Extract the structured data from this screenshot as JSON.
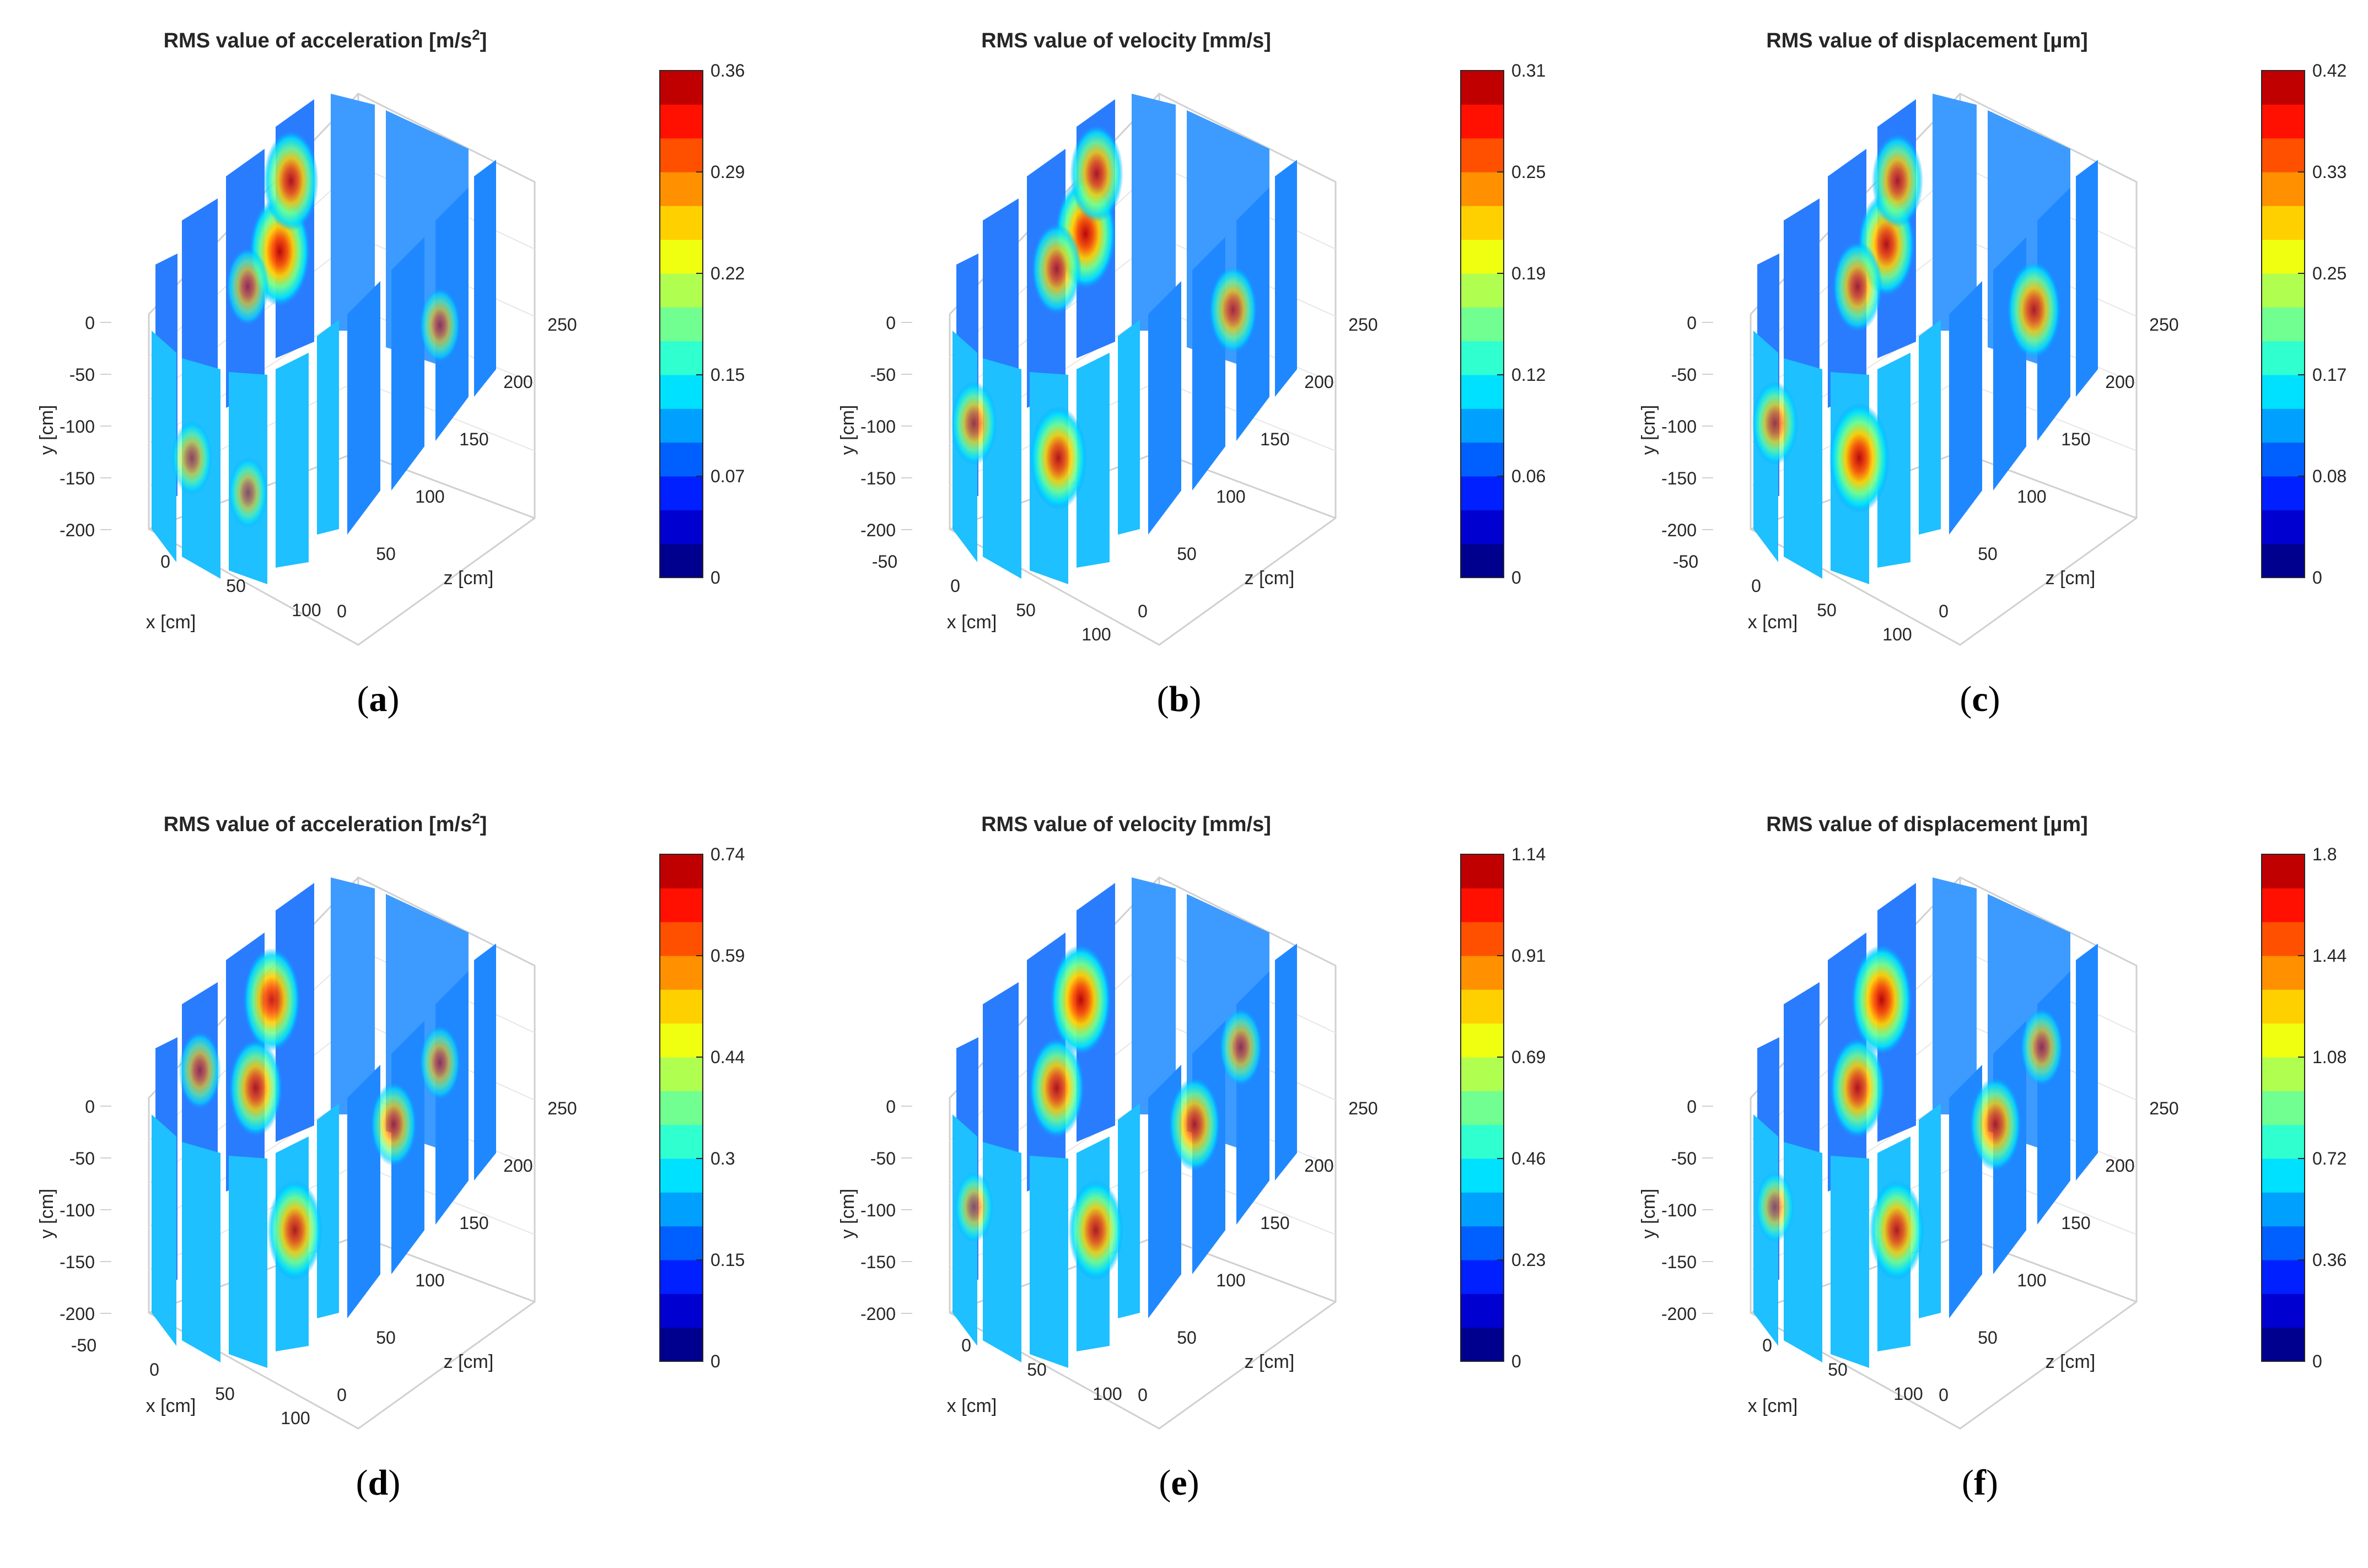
{
  "figure": {
    "colormap": [
      "#00008f",
      "#0000d0",
      "#0020ff",
      "#0060ff",
      "#00a0ff",
      "#00e0ff",
      "#30ffd0",
      "#70ff90",
      "#b0ff50",
      "#f0ff10",
      "#ffd000",
      "#ff9000",
      "#ff5000",
      "#ff1000",
      "#c00000"
    ],
    "mesh_color": "#d0d0d0",
    "panel_bg": "#ffffff"
  },
  "chart_data": [
    {
      "type": "heatmap",
      "panel_label": "(a)",
      "title_main": "RMS value of acceleration [m/s",
      "title_sup": "2",
      "title_end": "]",
      "xlabel": "x [cm]",
      "ylabel": "y [cm]",
      "zlabel": "z [cm]",
      "x_ticks": [
        "0",
        "50",
        "100"
      ],
      "y_ticks": [
        "0",
        "-50",
        "-100",
        "-150",
        "-200"
      ],
      "z_ticks": [
        "0",
        "50",
        "100",
        "150",
        "200",
        "250"
      ],
      "colorbar": {
        "min": 0,
        "max": 0.36,
        "ticks": [
          "0",
          "0.07",
          "0.15",
          "0.22",
          "0.29",
          "0.36"
        ]
      },
      "hotspots": [
        {
          "surface": "left",
          "cx": 0.75,
          "cy": 0.4,
          "value": 1.0
        },
        {
          "surface": "left",
          "cx": 0.82,
          "cy": 0.2,
          "value": 0.85
        },
        {
          "surface": "left",
          "cx": 0.55,
          "cy": 0.5,
          "value": 0.5
        },
        {
          "surface": "front",
          "cx": 0.5,
          "cy": 0.7,
          "value": 0.4
        },
        {
          "surface": "front",
          "cx": 0.2,
          "cy": 0.55,
          "value": 0.45
        },
        {
          "surface": "right",
          "cx": 0.6,
          "cy": 0.5,
          "value": 0.45
        }
      ]
    },
    {
      "type": "heatmap",
      "panel_label": "(b)",
      "title_main": "RMS value of velocity [mm/s]",
      "title_sup": "",
      "title_end": "",
      "xlabel": "x [cm]",
      "ylabel": "y [cm]",
      "zlabel": "z [cm]",
      "x_ticks": [
        "-50",
        "0",
        "50",
        "100"
      ],
      "y_ticks": [
        "0",
        "-50",
        "-100",
        "-150",
        "-200"
      ],
      "z_ticks": [
        "0",
        "50",
        "100",
        "150",
        "200",
        "250"
      ],
      "colorbar": {
        "min": 0,
        "max": 0.31,
        "ticks": [
          "0",
          "0.06",
          "0.12",
          "0.19",
          "0.25",
          "0.31"
        ]
      },
      "hotspots": [
        {
          "surface": "left",
          "cx": 0.78,
          "cy": 0.35,
          "value": 1.0
        },
        {
          "surface": "left",
          "cx": 0.85,
          "cy": 0.18,
          "value": 0.8
        },
        {
          "surface": "left",
          "cx": 0.6,
          "cy": 0.45,
          "value": 0.7
        },
        {
          "surface": "front",
          "cx": 0.55,
          "cy": 0.55,
          "value": 0.9
        },
        {
          "surface": "front",
          "cx": 0.1,
          "cy": 0.4,
          "value": 0.6
        },
        {
          "surface": "right",
          "cx": 0.55,
          "cy": 0.45,
          "value": 0.65
        }
      ]
    },
    {
      "type": "heatmap",
      "panel_label": "(c)",
      "title_main": "RMS value of displacement [µm]",
      "title_sup": "",
      "title_end": "",
      "xlabel": "x [cm]",
      "ylabel": "y [cm]",
      "zlabel": "z [cm]",
      "x_ticks": [
        "-50",
        "0",
        "50",
        "100"
      ],
      "y_ticks": [
        "0",
        "-50",
        "-100",
        "-150",
        "-200"
      ],
      "z_ticks": [
        "0",
        "50",
        "100",
        "150",
        "200",
        "250"
      ],
      "colorbar": {
        "min": 0,
        "max": 0.42,
        "ticks": [
          "0",
          "0.08",
          "0.17",
          "0.25",
          "0.33",
          "0.42"
        ]
      },
      "hotspots": [
        {
          "surface": "left",
          "cx": 0.78,
          "cy": 0.38,
          "value": 0.9
        },
        {
          "surface": "left",
          "cx": 0.85,
          "cy": 0.2,
          "value": 0.75
        },
        {
          "surface": "left",
          "cx": 0.6,
          "cy": 0.5,
          "value": 0.7
        },
        {
          "surface": "front",
          "cx": 0.55,
          "cy": 0.55,
          "value": 1.0
        },
        {
          "surface": "front",
          "cx": 0.1,
          "cy": 0.4,
          "value": 0.6
        },
        {
          "surface": "right",
          "cx": 0.55,
          "cy": 0.45,
          "value": 0.8
        }
      ]
    },
    {
      "type": "heatmap",
      "panel_label": "(d)",
      "title_main": "RMS value of acceleration [m/s",
      "title_sup": "2",
      "title_end": "]",
      "xlabel": "x [cm]",
      "ylabel": "y [cm]",
      "zlabel": "z [cm]",
      "x_ticks": [
        "-50",
        "0",
        "50",
        "100"
      ],
      "y_ticks": [
        "0",
        "-50",
        "-100",
        "-150",
        "-200"
      ],
      "z_ticks": [
        "0",
        "50",
        "100",
        "150",
        "200",
        "250"
      ],
      "colorbar": {
        "min": 0,
        "max": 0.74,
        "ticks": [
          "0",
          "0.15",
          "0.3",
          "0.44",
          "0.59",
          "0.74"
        ]
      },
      "hotspots": [
        {
          "surface": "left",
          "cx": 0.7,
          "cy": 0.3,
          "value": 0.9
        },
        {
          "surface": "left",
          "cx": 0.6,
          "cy": 0.55,
          "value": 0.8
        },
        {
          "surface": "left",
          "cx": 0.25,
          "cy": 0.5,
          "value": 0.5
        },
        {
          "surface": "front",
          "cx": 0.75,
          "cy": 0.5,
          "value": 0.85
        },
        {
          "surface": "right",
          "cx": 0.3,
          "cy": 0.55,
          "value": 0.6
        },
        {
          "surface": "right",
          "cx": 0.6,
          "cy": 0.35,
          "value": 0.45
        }
      ]
    },
    {
      "type": "heatmap",
      "panel_label": "(e)",
      "title_main": "RMS value of velocity [mm/s]",
      "title_sup": "",
      "title_end": "",
      "xlabel": "x [cm]",
      "ylabel": "y [cm]",
      "zlabel": "z [cm]",
      "x_ticks": [
        "0",
        "50",
        "100"
      ],
      "y_ticks": [
        "0",
        "-50",
        "-100",
        "-150",
        "-200"
      ],
      "z_ticks": [
        "0",
        "50",
        "100",
        "150",
        "200",
        "250"
      ],
      "colorbar": {
        "min": 0,
        "max": 1.14,
        "ticks": [
          "0",
          "0.23",
          "0.46",
          "0.69",
          "0.91",
          "1.14"
        ]
      },
      "hotspots": [
        {
          "surface": "left",
          "cx": 0.75,
          "cy": 0.3,
          "value": 1.0
        },
        {
          "surface": "left",
          "cx": 0.6,
          "cy": 0.55,
          "value": 0.85
        },
        {
          "surface": "front",
          "cx": 0.75,
          "cy": 0.5,
          "value": 0.85
        },
        {
          "surface": "front",
          "cx": 0.1,
          "cy": 0.4,
          "value": 0.4
        },
        {
          "surface": "right",
          "cx": 0.3,
          "cy": 0.55,
          "value": 0.75
        },
        {
          "surface": "right",
          "cx": 0.6,
          "cy": 0.3,
          "value": 0.5
        }
      ]
    },
    {
      "type": "heatmap",
      "panel_label": "(f)",
      "title_main": "RMS value of displacement [µm]",
      "title_sup": "",
      "title_end": "",
      "xlabel": "x [cm]",
      "ylabel": "y [cm]",
      "zlabel": "z [cm]",
      "x_ticks": [
        "0",
        "50",
        "100"
      ],
      "y_ticks": [
        "0",
        "-50",
        "-100",
        "-150",
        "-200"
      ],
      "z_ticks": [
        "0",
        "50",
        "100",
        "150",
        "200",
        "250"
      ],
      "colorbar": {
        "min": 0,
        "max": 1.8,
        "ticks": [
          "0",
          "0.36",
          "0.72",
          "1.08",
          "1.44",
          "1.8"
        ]
      },
      "hotspots": [
        {
          "surface": "left",
          "cx": 0.75,
          "cy": 0.3,
          "value": 1.0
        },
        {
          "surface": "left",
          "cx": 0.6,
          "cy": 0.55,
          "value": 0.85
        },
        {
          "surface": "front",
          "cx": 0.75,
          "cy": 0.5,
          "value": 0.85
        },
        {
          "surface": "front",
          "cx": 0.1,
          "cy": 0.4,
          "value": 0.4
        },
        {
          "surface": "right",
          "cx": 0.3,
          "cy": 0.55,
          "value": 0.75
        },
        {
          "surface": "right",
          "cx": 0.6,
          "cy": 0.3,
          "value": 0.5
        }
      ]
    }
  ]
}
